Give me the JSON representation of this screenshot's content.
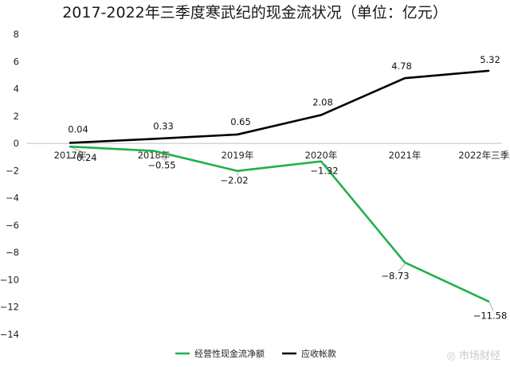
{
  "chart_data": {
    "type": "line",
    "title": "2017-2022年三季度寒武纪的现金流状况（单位：亿元）",
    "categories": [
      "2017年",
      "2018年",
      "2019年",
      "2020年",
      "2021年",
      "2022年三季度"
    ],
    "ylim": [
      -14,
      8
    ],
    "yticks": [
      8,
      6,
      4,
      2,
      0,
      -2,
      -4,
      -6,
      -8,
      -10,
      -12,
      -14
    ],
    "grid": false,
    "legend_position": "bottom",
    "series": [
      {
        "name": "经营性现金流净额",
        "color": "#1fb14a",
        "values": [
          -0.24,
          -0.55,
          -2.02,
          -1.32,
          -8.73,
          -11.58
        ],
        "labels": [
          "-0.24",
          "-0.55",
          "-2.02",
          "-1.32",
          "-8.73",
          "-11.58"
        ]
      },
      {
        "name": "应收帐款",
        "color": "#000000",
        "values": [
          0.04,
          0.33,
          0.65,
          2.08,
          4.78,
          5.32
        ],
        "labels": [
          "0.04",
          "0.33",
          "0.65",
          "2.08",
          "4.78",
          "5.32"
        ]
      }
    ]
  },
  "watermark": "◎ 市场财经"
}
